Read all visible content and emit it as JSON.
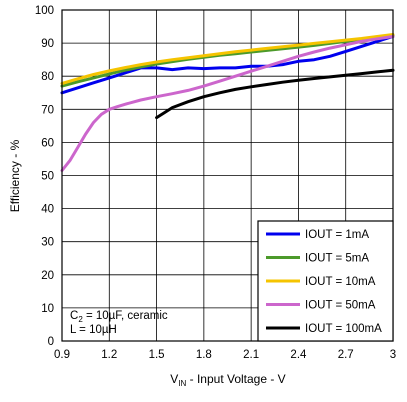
{
  "chart_data": {
    "type": "line",
    "title": "",
    "xlabel_main": "V",
    "xlabel_sub": "IN",
    "xlabel_rest": " - Input Voltage - V",
    "ylabel": "Efficiency - %",
    "xlim": [
      0.9,
      3.0
    ],
    "ylim": [
      0,
      100
    ],
    "xticks": [
      "0.9",
      "1.2",
      "1.5",
      "1.8",
      "2.1",
      "2.4",
      "2.7",
      "3"
    ],
    "xtick_values": [
      0.9,
      1.2,
      1.5,
      1.8,
      2.1,
      2.4,
      2.7,
      3.0
    ],
    "yticks": [
      "0",
      "10",
      "20",
      "30",
      "40",
      "50",
      "60",
      "70",
      "80",
      "90",
      "100"
    ],
    "ytick_values": [
      0,
      10,
      20,
      30,
      40,
      50,
      60,
      70,
      80,
      90,
      100
    ],
    "grid": true,
    "legend_position": "bottom-right",
    "annotation_line1_pre": "C",
    "annotation_line1_sub": "2",
    "annotation_line1_post": " = 10µF, ceramic",
    "annotation_line2": "L = 10µH",
    "series": [
      {
        "name": "IOUT = 1mA",
        "color": "#0000ee",
        "points": [
          [
            0.9,
            75
          ],
          [
            1.0,
            76.5
          ],
          [
            1.1,
            78
          ],
          [
            1.2,
            79.5
          ],
          [
            1.3,
            81
          ],
          [
            1.4,
            82.5
          ],
          [
            1.5,
            82.5
          ],
          [
            1.6,
            82
          ],
          [
            1.7,
            82.5
          ],
          [
            1.8,
            82.3
          ],
          [
            1.9,
            82.5
          ],
          [
            2.0,
            82.5
          ],
          [
            2.1,
            83
          ],
          [
            2.2,
            83
          ],
          [
            2.3,
            83.5
          ],
          [
            2.4,
            84.5
          ],
          [
            2.5,
            85
          ],
          [
            2.6,
            86
          ],
          [
            2.7,
            87.5
          ],
          [
            2.8,
            89
          ],
          [
            2.9,
            90.5
          ],
          [
            3.0,
            92
          ]
        ]
      },
      {
        "name": "IOUT = 5mA",
        "color": "#4c9a2a",
        "points": [
          [
            0.9,
            77
          ],
          [
            1.0,
            78.3
          ],
          [
            1.1,
            79.5
          ],
          [
            1.2,
            80.7
          ],
          [
            1.3,
            81.8
          ],
          [
            1.4,
            82.8
          ],
          [
            1.5,
            83.7
          ],
          [
            1.6,
            84.4
          ],
          [
            1.7,
            85.1
          ],
          [
            1.8,
            85.7
          ],
          [
            1.9,
            86.3
          ],
          [
            2.0,
            86.8
          ],
          [
            2.1,
            87.3
          ],
          [
            2.2,
            87.8
          ],
          [
            2.3,
            88.3
          ],
          [
            2.4,
            88.8
          ],
          [
            2.5,
            89.3
          ],
          [
            2.6,
            89.9
          ],
          [
            2.7,
            90.5
          ],
          [
            2.8,
            91.1
          ],
          [
            2.9,
            91.7
          ],
          [
            3.0,
            92.3
          ]
        ]
      },
      {
        "name": "IOUT = 10mA",
        "color": "#f5c400",
        "points": [
          [
            0.9,
            77.8
          ],
          [
            1.0,
            79.2
          ],
          [
            1.1,
            80.5
          ],
          [
            1.2,
            81.6
          ],
          [
            1.3,
            82.6
          ],
          [
            1.4,
            83.5
          ],
          [
            1.5,
            84.3
          ],
          [
            1.6,
            85
          ],
          [
            1.7,
            85.6
          ],
          [
            1.8,
            86.2
          ],
          [
            1.9,
            86.8
          ],
          [
            2.0,
            87.4
          ],
          [
            2.1,
            87.9
          ],
          [
            2.2,
            88.4
          ],
          [
            2.3,
            88.9
          ],
          [
            2.4,
            89.4
          ],
          [
            2.5,
            89.9
          ],
          [
            2.6,
            90.4
          ],
          [
            2.7,
            90.9
          ],
          [
            2.8,
            91.4
          ],
          [
            2.9,
            92
          ],
          [
            3.0,
            92.6
          ]
        ]
      },
      {
        "name": "IOUT = 50mA",
        "color": "#cc66cc",
        "points": [
          [
            0.9,
            51.5
          ],
          [
            0.95,
            54.5
          ],
          [
            1.0,
            58.5
          ],
          [
            1.05,
            62.5
          ],
          [
            1.1,
            66
          ],
          [
            1.15,
            68.5
          ],
          [
            1.2,
            70
          ],
          [
            1.25,
            70.8
          ],
          [
            1.3,
            71.5
          ],
          [
            1.4,
            72.8
          ],
          [
            1.5,
            73.8
          ],
          [
            1.6,
            74.7
          ],
          [
            1.7,
            75.7
          ],
          [
            1.8,
            77
          ],
          [
            1.9,
            78.5
          ],
          [
            2.0,
            80
          ],
          [
            2.1,
            81.5
          ],
          [
            2.2,
            83
          ],
          [
            2.3,
            84.5
          ],
          [
            2.4,
            86
          ],
          [
            2.5,
            87.3
          ],
          [
            2.6,
            88.5
          ],
          [
            2.7,
            89.5
          ],
          [
            2.8,
            90.5
          ],
          [
            2.9,
            91.3
          ],
          [
            3.0,
            92
          ]
        ]
      },
      {
        "name": "IOUT = 100mA",
        "color": "#000000",
        "points": [
          [
            1.5,
            67.5
          ],
          [
            1.55,
            69
          ],
          [
            1.6,
            70.5
          ],
          [
            1.7,
            72.3
          ],
          [
            1.8,
            73.8
          ],
          [
            1.9,
            75
          ],
          [
            2.0,
            76
          ],
          [
            2.1,
            76.8
          ],
          [
            2.2,
            77.5
          ],
          [
            2.3,
            78.2
          ],
          [
            2.4,
            78.8
          ],
          [
            2.5,
            79.3
          ],
          [
            2.6,
            79.8
          ],
          [
            2.7,
            80.3
          ],
          [
            2.8,
            80.8
          ],
          [
            2.9,
            81.3
          ],
          [
            3.0,
            81.8
          ]
        ]
      }
    ]
  }
}
